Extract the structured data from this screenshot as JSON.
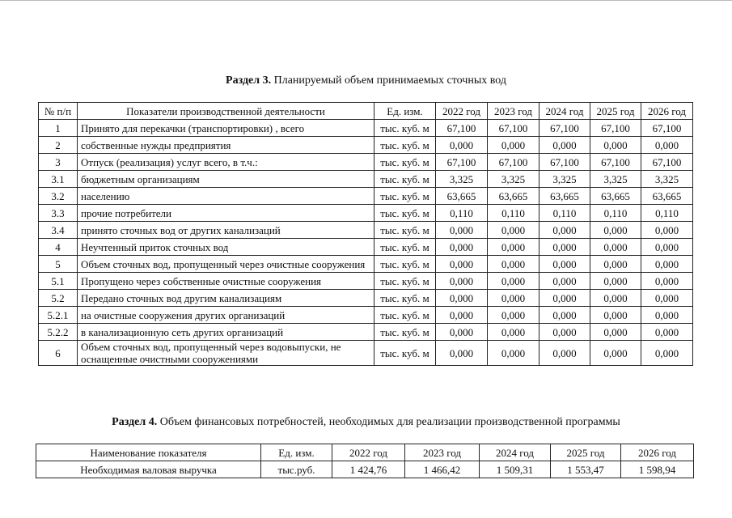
{
  "section3": {
    "title_bold": "Раздел 3.",
    "title_text": "Планируемый объем принимаемых сточных вод",
    "table": {
      "headers": [
        "№ п/п",
        "Показатели производственной деятельности",
        "Ед. изм.",
        "2022 год",
        "2023 год",
        "2024 год",
        "2025 год",
        "2026 год"
      ],
      "rows": [
        [
          "1",
          "Принято для перекачки (транспортировки) , всего",
          "тыс. куб. м",
          "67,100",
          "67,100",
          "67,100",
          "67,100",
          "67,100"
        ],
        [
          "2",
          "собственные нужды предприятия",
          "тыс. куб. м",
          "0,000",
          "0,000",
          "0,000",
          "0,000",
          "0,000"
        ],
        [
          "3",
          "Отпуск (реализация) услуг всего, в т.ч.:",
          "тыс. куб. м",
          "67,100",
          "67,100",
          "67,100",
          "67,100",
          "67,100"
        ],
        [
          "3.1",
          "бюджетным организациям",
          "тыс. куб. м",
          "3,325",
          "3,325",
          "3,325",
          "3,325",
          "3,325"
        ],
        [
          "3.2",
          "населению",
          "тыс. куб. м",
          "63,665",
          "63,665",
          "63,665",
          "63,665",
          "63,665"
        ],
        [
          "3.3",
          "прочие потребители",
          "тыс. куб. м",
          "0,110",
          "0,110",
          "0,110",
          "0,110",
          "0,110"
        ],
        [
          "3.4",
          "принято сточных вод от других канализаций",
          "тыс. куб. м",
          "0,000",
          "0,000",
          "0,000",
          "0,000",
          "0,000"
        ],
        [
          "4",
          "Неучтенный приток сточных вод",
          "тыс. куб. м",
          "0,000",
          "0,000",
          "0,000",
          "0,000",
          "0,000"
        ],
        [
          "5",
          "Объем сточных вод, пропущенный через очистные сооружения",
          "тыс. куб. м",
          "0,000",
          "0,000",
          "0,000",
          "0,000",
          "0,000"
        ],
        [
          "5.1",
          "Пропущено через собственные очистные сооружения",
          "тыс. куб. м",
          "0,000",
          "0,000",
          "0,000",
          "0,000",
          "0,000"
        ],
        [
          "5.2",
          "Передано сточных вод другим канализациям",
          "тыс. куб. м",
          "0,000",
          "0,000",
          "0,000",
          "0,000",
          "0,000"
        ],
        [
          "5.2.1",
          "на очистные сооружения других организаций",
          "тыс. куб. м",
          "0,000",
          "0,000",
          "0,000",
          "0,000",
          "0,000"
        ],
        [
          "5.2.2",
          "в канализационную сеть других организаций",
          "тыс. куб. м",
          "0,000",
          "0,000",
          "0,000",
          "0,000",
          "0,000"
        ],
        [
          "6",
          "Объем сточных вод, пропущенный через водовыпуски, не оснащенные очистными сооружениями",
          "тыс. куб. м",
          "0,000",
          "0,000",
          "0,000",
          "0,000",
          "0,000"
        ]
      ]
    }
  },
  "section4": {
    "title_bold": "Раздел 4.",
    "title_text": "Объем финансовых потребностей, необходимых для реализации производственной программы",
    "table": {
      "headers": [
        "Наименование показателя",
        "Ед. изм.",
        "2022 год",
        "2023 год",
        "2024 год",
        "2025 год",
        "2026 год"
      ],
      "rows": [
        [
          "Необходимая валовая выручка",
          "тыс.руб.",
          "1 424,76",
          "1 466,42",
          "1 509,31",
          "1 553,47",
          "1 598,94"
        ]
      ]
    }
  }
}
